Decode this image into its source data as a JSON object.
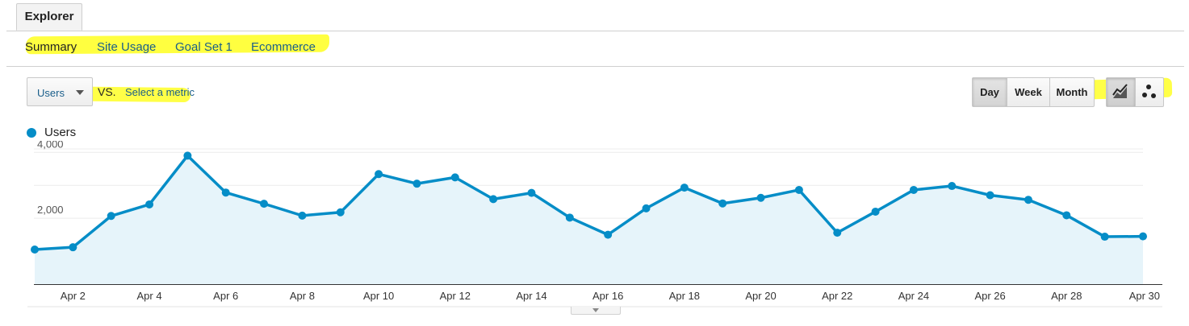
{
  "tabs": {
    "explorer_label": "Explorer"
  },
  "subtabs": [
    {
      "label": "Summary",
      "active": true
    },
    {
      "label": "Site Usage",
      "active": false
    },
    {
      "label": "Goal Set 1",
      "active": false
    },
    {
      "label": "Ecommerce",
      "active": false
    }
  ],
  "controls": {
    "primary_metric": "Users",
    "vs_label": "VS.",
    "compare_link": "Select a metric",
    "range_buttons": [
      "Day",
      "Week",
      "Month"
    ],
    "range_selected": "Day",
    "view_buttons": [
      {
        "icon": "line-chart-icon",
        "active": true
      },
      {
        "icon": "motion-chart-icon",
        "active": false
      }
    ]
  },
  "colors": {
    "series": "#058dc7",
    "area_fill": "#e6f4fa",
    "highlight": "#ffff00",
    "link": "#1a5e8a"
  },
  "chart_data": {
    "type": "area",
    "series": [
      {
        "name": "Users",
        "values": [
          1050,
          1120,
          2070,
          2420,
          3900,
          2780,
          2440,
          2080,
          2180,
          3340,
          3050,
          3240,
          2580,
          2770,
          2020,
          1500,
          2300,
          2930,
          2450,
          2620,
          2860,
          1560,
          2200,
          2860,
          2980,
          2700,
          2560,
          2090,
          1440,
          1450
        ]
      }
    ],
    "x": [
      "Apr 1",
      "Apr 2",
      "Apr 3",
      "Apr 4",
      "Apr 5",
      "Apr 6",
      "Apr 7",
      "Apr 8",
      "Apr 9",
      "Apr 10",
      "Apr 11",
      "Apr 12",
      "Apr 13",
      "Apr 14",
      "Apr 15",
      "Apr 16",
      "Apr 17",
      "Apr 18",
      "Apr 19",
      "Apr 20",
      "Apr 21",
      "Apr 22",
      "Apr 23",
      "Apr 24",
      "Apr 25",
      "Apr 26",
      "Apr 27",
      "Apr 28",
      "Apr 29",
      "Apr 30"
    ],
    "x_tick_labels": [
      "Apr 2",
      "Apr 4",
      "Apr 6",
      "Apr 8",
      "Apr 10",
      "Apr 12",
      "Apr 14",
      "Apr 16",
      "Apr 18",
      "Apr 20",
      "Apr 22",
      "Apr 24",
      "Apr 26",
      "Apr 28",
      "Apr 30"
    ],
    "y_tick_labels": [
      "4,000",
      "2,000"
    ],
    "y_ticks": [
      4000,
      2000
    ],
    "ylim": [
      0,
      4000
    ],
    "grid": true,
    "legend": "top-left"
  }
}
